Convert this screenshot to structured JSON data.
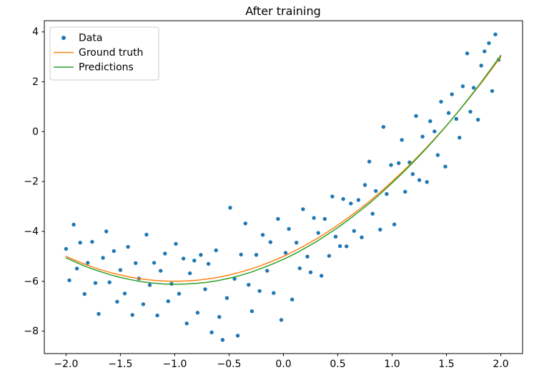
{
  "chart_data": {
    "type": "scatter",
    "title": "After training",
    "legend": [
      "Data",
      "Ground truth",
      "Predictions"
    ],
    "legend_position": "upper left",
    "grid": false,
    "xlabel": "",
    "ylabel": "",
    "xlim": [
      -2.2,
      2.2
    ],
    "ylim": [
      -8.9,
      4.45
    ],
    "x_ticks": [
      -2.0,
      -1.5,
      -1.0,
      -0.5,
      0.0,
      0.5,
      1.0,
      1.5,
      2.0
    ],
    "x_tick_labels": [
      "−2.0",
      "−1.5",
      "−1.0",
      "−0.5",
      "0.0",
      "0.5",
      "1.0",
      "1.5",
      "2.0"
    ],
    "y_ticks": [
      -8,
      -6,
      -4,
      -2,
      0,
      2,
      4
    ],
    "y_tick_labels": [
      "−8",
      "−6",
      "−4",
      "−2",
      "0",
      "2",
      "4"
    ],
    "colors": {
      "data": "#1f77b4",
      "ground_truth": "#ff7f0e",
      "predictions": "#2ca02c"
    },
    "scatter": [
      [
        -2.0,
        -4.7
      ],
      [
        -1.97,
        -5.96
      ],
      [
        -1.93,
        -3.73
      ],
      [
        -1.9,
        -5.49
      ],
      [
        -1.87,
        -4.45
      ],
      [
        -1.83,
        -6.51
      ],
      [
        -1.8,
        -5.26
      ],
      [
        -1.76,
        -4.42
      ],
      [
        -1.73,
        -6.07
      ],
      [
        -1.7,
        -7.31
      ],
      [
        -1.66,
        -5.06
      ],
      [
        -1.63,
        -4.0
      ],
      [
        -1.6,
        -6.04
      ],
      [
        -1.56,
        -4.79
      ],
      [
        -1.53,
        -6.82
      ],
      [
        -1.5,
        -5.55
      ],
      [
        -1.46,
        -6.49
      ],
      [
        -1.43,
        -4.62
      ],
      [
        -1.39,
        -7.35
      ],
      [
        -1.36,
        -5.27
      ],
      [
        -1.33,
        -5.89
      ],
      [
        -1.29,
        -6.92
      ],
      [
        -1.26,
        -4.13
      ],
      [
        -1.23,
        -6.15
      ],
      [
        -1.19,
        -5.26
      ],
      [
        -1.16,
        -7.37
      ],
      [
        -1.13,
        -5.58
      ],
      [
        -1.09,
        -4.89
      ],
      [
        -1.06,
        -6.8
      ],
      [
        -1.03,
        -6.1
      ],
      [
        -0.99,
        -4.5
      ],
      [
        -0.96,
        -6.5
      ],
      [
        -0.92,
        -5.09
      ],
      [
        -0.89,
        -7.69
      ],
      [
        -0.86,
        -5.68
      ],
      [
        -0.82,
        -5.17
      ],
      [
        -0.79,
        -7.26
      ],
      [
        -0.76,
        -4.94
      ],
      [
        -0.72,
        -6.32
      ],
      [
        -0.69,
        -5.3
      ],
      [
        -0.66,
        -8.05
      ],
      [
        -0.62,
        -4.76
      ],
      [
        -0.59,
        -7.43
      ],
      [
        -0.56,
        -8.35
      ],
      [
        -0.52,
        -6.67
      ],
      [
        -0.49,
        -3.05
      ],
      [
        -0.45,
        -5.9
      ],
      [
        -0.42,
        -8.18
      ],
      [
        -0.39,
        -4.93
      ],
      [
        -0.35,
        -3.68
      ],
      [
        -0.32,
        -6.14
      ],
      [
        -0.29,
        -7.2
      ],
      [
        -0.25,
        -4.94
      ],
      [
        -0.22,
        -6.39
      ],
      [
        -0.19,
        -4.14
      ],
      [
        -0.15,
        -5.58
      ],
      [
        -0.12,
        -4.43
      ],
      [
        -0.09,
        -6.47
      ],
      [
        -0.05,
        -3.5
      ],
      [
        -0.02,
        -7.55
      ],
      [
        0.02,
        -4.86
      ],
      [
        0.05,
        -3.9
      ],
      [
        0.08,
        -6.73
      ],
      [
        0.12,
        -4.45
      ],
      [
        0.15,
        -5.48
      ],
      [
        0.18,
        -3.11
      ],
      [
        0.22,
        -5.01
      ],
      [
        0.25,
        -5.64
      ],
      [
        0.28,
        -3.46
      ],
      [
        0.32,
        -4.06
      ],
      [
        0.35,
        -5.78
      ],
      [
        0.38,
        -3.5
      ],
      [
        0.42,
        -4.98
      ],
      [
        0.45,
        -2.6
      ],
      [
        0.48,
        -4.21
      ],
      [
        0.52,
        -4.59
      ],
      [
        0.55,
        -2.7
      ],
      [
        0.58,
        -4.6
      ],
      [
        0.62,
        -2.88
      ],
      [
        0.65,
        -3.98
      ],
      [
        0.69,
        -2.74
      ],
      [
        0.72,
        -4.24
      ],
      [
        0.75,
        -2.14
      ],
      [
        0.79,
        -1.2
      ],
      [
        0.82,
        -3.29
      ],
      [
        0.85,
        -2.38
      ],
      [
        0.89,
        -3.93
      ],
      [
        0.92,
        0.19
      ],
      [
        0.95,
        -2.5
      ],
      [
        0.99,
        -1.34
      ],
      [
        1.02,
        -3.72
      ],
      [
        1.06,
        -1.26
      ],
      [
        1.09,
        -0.33
      ],
      [
        1.12,
        -2.41
      ],
      [
        1.16,
        -1.23
      ],
      [
        1.19,
        -1.7
      ],
      [
        1.22,
        0.63
      ],
      [
        1.25,
        -1.94
      ],
      [
        1.28,
        -0.2
      ],
      [
        1.32,
        -2.02
      ],
      [
        1.35,
        0.42
      ],
      [
        1.39,
        0.01
      ],
      [
        1.42,
        -0.94
      ],
      [
        1.45,
        1.2
      ],
      [
        1.49,
        -1.4
      ],
      [
        1.52,
        0.75
      ],
      [
        1.55,
        1.5
      ],
      [
        1.59,
        0.51
      ],
      [
        1.62,
        -0.24
      ],
      [
        1.65,
        1.82
      ],
      [
        1.69,
        3.14
      ],
      [
        1.72,
        0.8
      ],
      [
        1.75,
        1.76
      ],
      [
        1.79,
        0.48
      ],
      [
        1.82,
        2.65
      ],
      [
        1.85,
        3.22
      ],
      [
        1.89,
        3.55
      ],
      [
        1.92,
        1.63
      ],
      [
        1.95,
        3.9
      ],
      [
        1.98,
        2.88
      ]
    ],
    "ground_truth": [
      [
        -2,
        -5
      ],
      [
        -1.9,
        -5.19
      ],
      [
        -1.8,
        -5.36
      ],
      [
        -1.7,
        -5.51
      ],
      [
        -1.6,
        -5.64
      ],
      [
        -1.5,
        -5.75
      ],
      [
        -1.4,
        -5.84
      ],
      [
        -1.3,
        -5.91
      ],
      [
        -1.2,
        -5.96
      ],
      [
        -1.1,
        -5.99
      ],
      [
        -1,
        -6
      ],
      [
        -0.9,
        -5.99
      ],
      [
        -0.8,
        -5.96
      ],
      [
        -0.7,
        -5.91
      ],
      [
        -0.6,
        -5.84
      ],
      [
        -0.5,
        -5.75
      ],
      [
        -0.4,
        -5.64
      ],
      [
        -0.3,
        -5.51
      ],
      [
        -0.2,
        -5.36
      ],
      [
        -0.1,
        -5.19
      ],
      [
        0,
        -5
      ],
      [
        0.1,
        -4.79
      ],
      [
        0.2,
        -4.56
      ],
      [
        0.3,
        -4.31
      ],
      [
        0.4,
        -4.04
      ],
      [
        0.5,
        -3.75
      ],
      [
        0.6,
        -3.44
      ],
      [
        0.7,
        -3.11
      ],
      [
        0.8,
        -2.76
      ],
      [
        0.9,
        -2.39
      ],
      [
        1,
        -2
      ],
      [
        1.1,
        -1.59
      ],
      [
        1.2,
        -1.16
      ],
      [
        1.3,
        -0.71
      ],
      [
        1.4,
        -0.24
      ],
      [
        1.5,
        0.25
      ],
      [
        1.6,
        0.76
      ],
      [
        1.7,
        1.29
      ],
      [
        1.8,
        1.84
      ],
      [
        1.9,
        2.41
      ],
      [
        2,
        3
      ]
    ],
    "predictions": [
      [
        -2,
        -5.06
      ],
      [
        -1.9,
        -5.26
      ],
      [
        -1.8,
        -5.44
      ],
      [
        -1.7,
        -5.59
      ],
      [
        -1.6,
        -5.73
      ],
      [
        -1.5,
        -5.85
      ],
      [
        -1.4,
        -5.94
      ],
      [
        -1.3,
        -6.02
      ],
      [
        -1.2,
        -6.07
      ],
      [
        -1.1,
        -6.11
      ],
      [
        -1,
        -6.12
      ],
      [
        -0.9,
        -6.11
      ],
      [
        -0.8,
        -6.08
      ],
      [
        -0.7,
        -6.04
      ],
      [
        -0.6,
        -5.97
      ],
      [
        -0.5,
        -5.88
      ],
      [
        -0.4,
        -5.77
      ],
      [
        -0.3,
        -5.64
      ],
      [
        -0.2,
        -5.48
      ],
      [
        -0.1,
        -5.31
      ],
      [
        0,
        -5.12
      ],
      [
        0.1,
        -4.91
      ],
      [
        0.2,
        -4.67
      ],
      [
        0.3,
        -4.42
      ],
      [
        0.4,
        -4.14
      ],
      [
        0.5,
        -3.85
      ],
      [
        0.6,
        -3.53
      ],
      [
        0.7,
        -3.19
      ],
      [
        0.8,
        -2.84
      ],
      [
        0.9,
        -2.46
      ],
      [
        1,
        -2.06
      ],
      [
        1.1,
        -1.64
      ],
      [
        1.2,
        -1.2
      ],
      [
        1.3,
        -0.74
      ],
      [
        1.4,
        -0.26
      ],
      [
        1.5,
        0.24
      ],
      [
        1.6,
        0.76
      ],
      [
        1.7,
        1.31
      ],
      [
        1.8,
        1.87
      ],
      [
        1.9,
        2.46
      ],
      [
        2,
        3.06
      ]
    ]
  }
}
